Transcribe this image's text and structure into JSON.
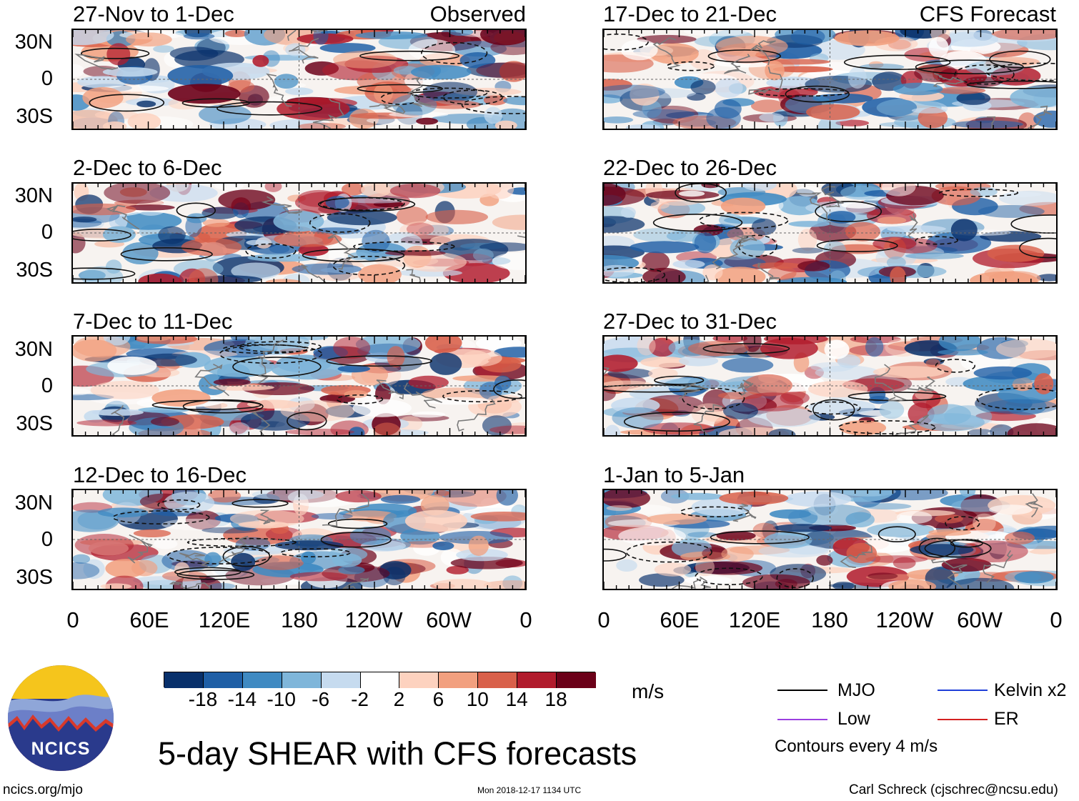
{
  "map": {
    "latitude_labels": [
      "30N",
      "0",
      "30S"
    ],
    "longitude_labels": [
      "0",
      "60E",
      "120E",
      "180",
      "120W",
      "60W",
      "0"
    ],
    "columns": [
      {
        "tag": "Observed",
        "panels": [
          {
            "title": "27-Nov to 1-Dec"
          },
          {
            "title": "2-Dec to 6-Dec"
          },
          {
            "title": "7-Dec to 11-Dec"
          },
          {
            "title": "12-Dec to 16-Dec"
          }
        ]
      },
      {
        "tag": "CFS Forecast",
        "panels": [
          {
            "title": "17-Dec to 21-Dec"
          },
          {
            "title": "22-Dec to 26-Dec"
          },
          {
            "title": "27-Dec to 31-Dec"
          },
          {
            "title": "1-Jan to 5-Jan"
          }
        ]
      }
    ]
  },
  "colorbar": {
    "labels": [
      "-18",
      "-14",
      "-10",
      "-6",
      "-2",
      "2",
      "6",
      "10",
      "14",
      "18"
    ],
    "colors": [
      "#08306b",
      "#1f5fa6",
      "#3f8ac2",
      "#7fb6da",
      "#c6dbef",
      "#ffffff",
      "#fdd2bf",
      "#f2a07f",
      "#d9604a",
      "#b11b2c",
      "#6b0018"
    ],
    "units": "m/s"
  },
  "legend": {
    "items": [
      {
        "label": "MJO",
        "color": "#000000"
      },
      {
        "label": "Kelvin x2",
        "color": "#1f3fd9"
      },
      {
        "label": "Low",
        "color": "#9b3fe0"
      },
      {
        "label": "ER",
        "color": "#d42020"
      }
    ],
    "note": "Contours every 4 m/s"
  },
  "logo": {
    "text": "NCICS"
  },
  "title": "5-day SHEAR with CFS forecasts",
  "footer": {
    "url": "ncics.org/mjo",
    "timestamp": "Mon 2018-12-17 1134 UTC",
    "author": "Carl Schreck (cjschrec@ncsu.edu)"
  }
}
